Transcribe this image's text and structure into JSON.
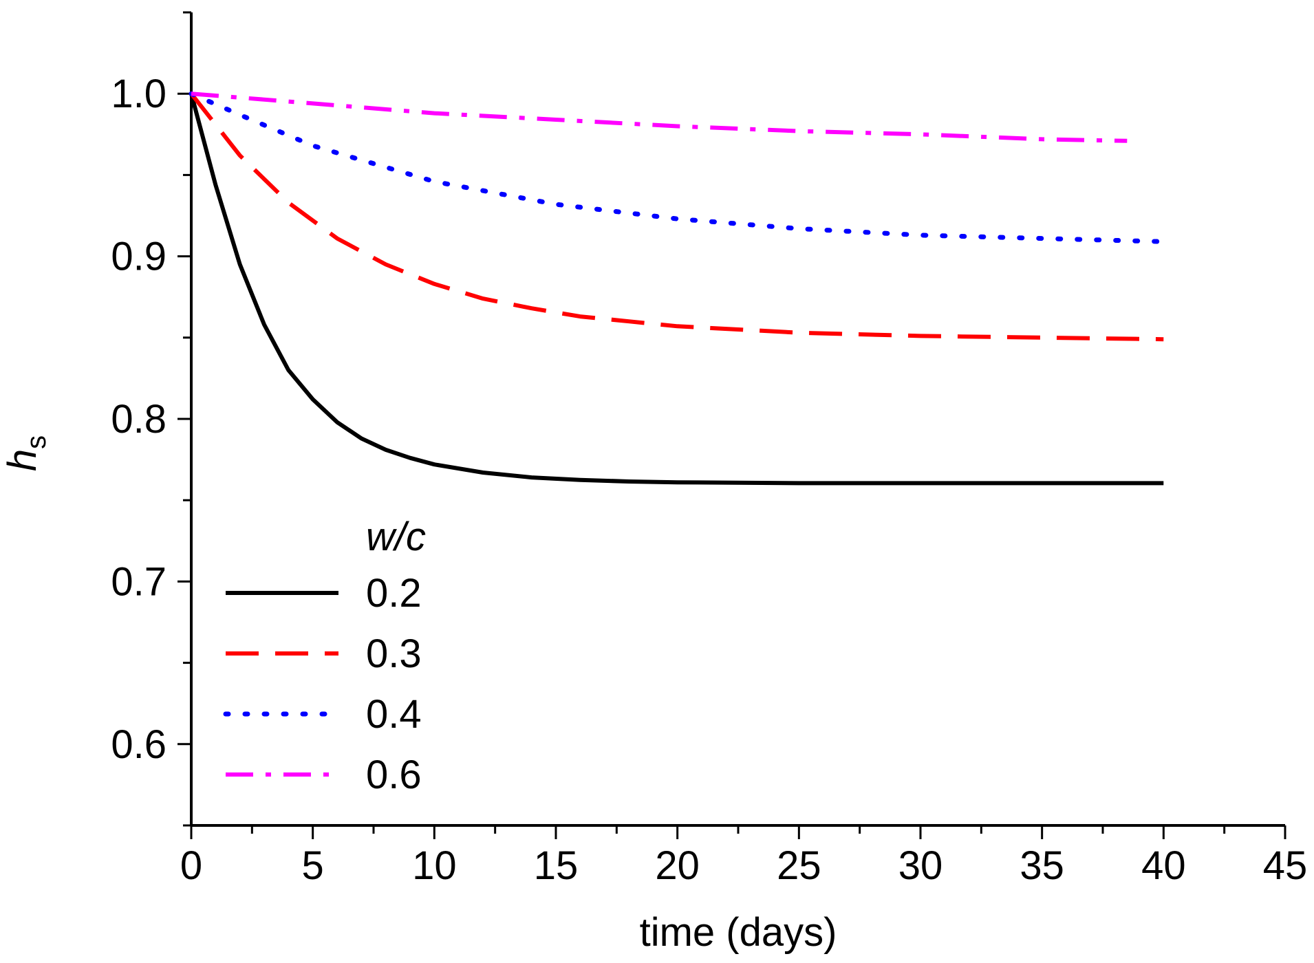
{
  "chart_data": {
    "type": "line",
    "title": "",
    "xlabel": "time (days)",
    "ylabel": {
      "main": "h",
      "sub": "s"
    },
    "xlim": [
      0,
      45
    ],
    "ylim": [
      0.55,
      1.05
    ],
    "xticks": [
      0,
      5,
      10,
      15,
      20,
      25,
      30,
      35,
      40,
      45
    ],
    "xtick_labels": [
      "0",
      "5",
      "10",
      "15",
      "20",
      "25",
      "30",
      "35",
      "40",
      "45"
    ],
    "yticks": [
      0.6,
      0.7,
      0.8,
      0.9,
      1.0
    ],
    "ytick_labels": [
      "0.6",
      "0.7",
      "0.8",
      "0.9",
      "1.0"
    ],
    "grid": false,
    "legend_title": "w/c",
    "legend_position": "lower-left",
    "series": [
      {
        "name": "0.2",
        "color": "#000000",
        "dash": "solid",
        "x": [
          0,
          1,
          2,
          3,
          4,
          5,
          6,
          7,
          8,
          9,
          10,
          12,
          14,
          16,
          18,
          20,
          25,
          30,
          35,
          40
        ],
        "y": [
          1.0,
          0.944,
          0.895,
          0.858,
          0.83,
          0.812,
          0.798,
          0.788,
          0.781,
          0.776,
          0.772,
          0.767,
          0.764,
          0.7625,
          0.7615,
          0.761,
          0.7605,
          0.7605,
          0.7605,
          0.7605
        ]
      },
      {
        "name": "0.3",
        "color": "#ff0000",
        "dash": "dashed",
        "x": [
          0,
          2,
          4,
          6,
          8,
          10,
          12,
          14,
          16,
          18,
          20,
          25,
          30,
          35,
          40
        ],
        "y": [
          1.0,
          0.962,
          0.933,
          0.911,
          0.895,
          0.883,
          0.874,
          0.868,
          0.863,
          0.86,
          0.857,
          0.853,
          0.851,
          0.85,
          0.849
        ]
      },
      {
        "name": "0.4",
        "color": "#0000ff",
        "dash": "dotted",
        "x": [
          0,
          2,
          5,
          10,
          15,
          20,
          25,
          30,
          35,
          40
        ],
        "y": [
          1.0,
          0.987,
          0.968,
          0.946,
          0.932,
          0.923,
          0.917,
          0.913,
          0.911,
          0.909
        ]
      },
      {
        "name": "0.6",
        "color": "#ff00ff",
        "dash": "dashdot",
        "x": [
          0,
          5,
          10,
          15,
          20,
          25,
          30,
          35,
          38.5
        ],
        "y": [
          1.0,
          0.994,
          0.988,
          0.984,
          0.98,
          0.977,
          0.975,
          0.972,
          0.971
        ]
      }
    ]
  }
}
